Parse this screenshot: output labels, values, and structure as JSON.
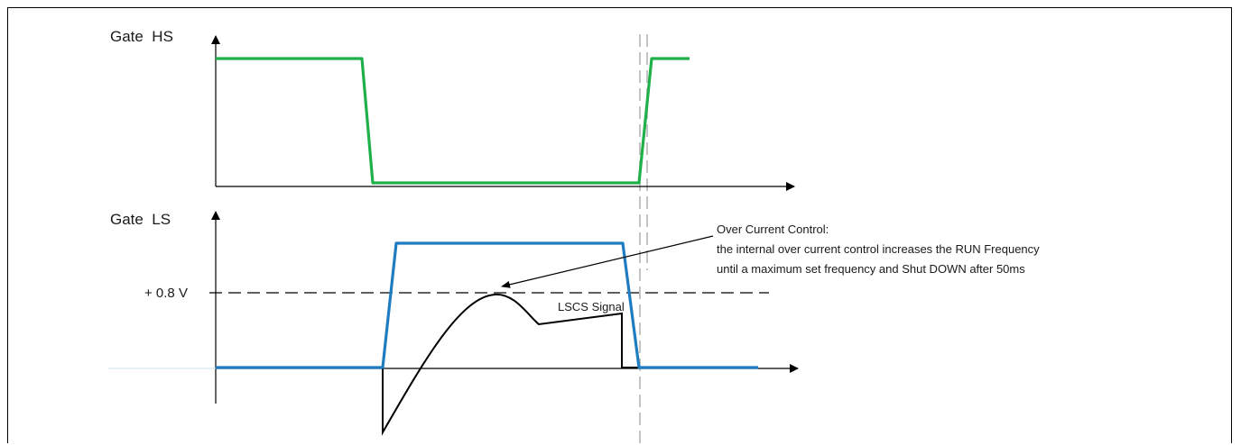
{
  "diagram": {
    "top_panel": {
      "title": "Gate  HS"
    },
    "bottom_panel": {
      "title": "Gate  LS",
      "threshold_label": "+ 0.8 V"
    },
    "signal_label": "LSCS Signal",
    "annotation": {
      "line1": "Over Current Control:",
      "line2": "the internal over current control increases the RUN Frequency",
      "line3": "until a maximum set frequency and Shut DOWN after 50ms"
    },
    "colors": {
      "gate_hs": "#1fb04a",
      "gate_ls": "#1f7cc1",
      "lscs": "#000000",
      "axis": "#000000",
      "dashed": "#000000",
      "guide": "#b0b0b0"
    }
  }
}
